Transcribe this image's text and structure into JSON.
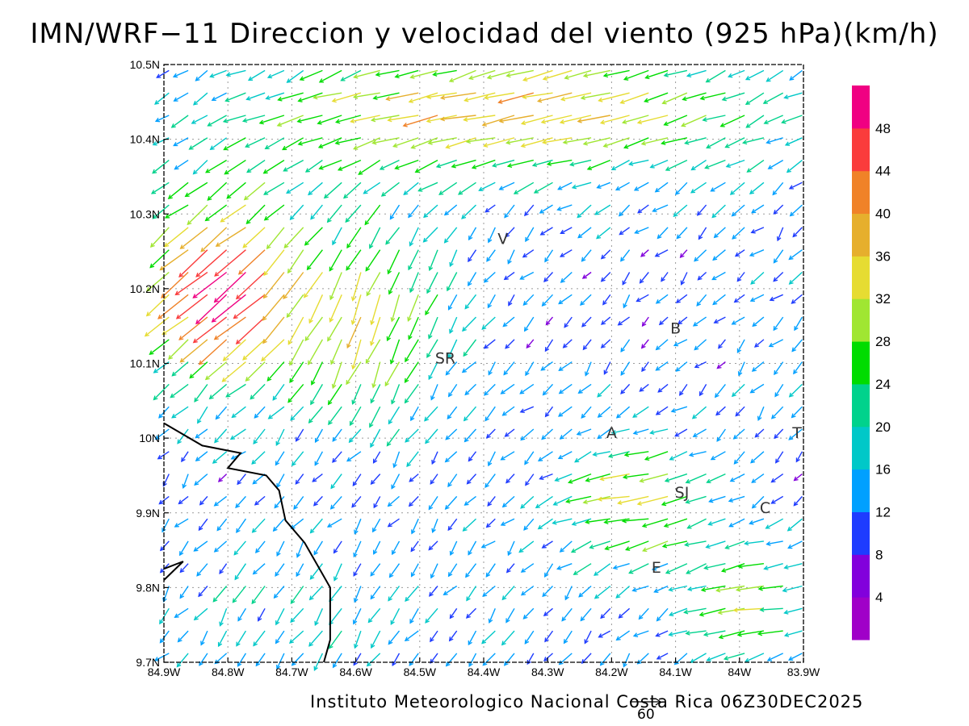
{
  "title": "IMN/WRF−11 Direccion y velocidad del viento (925 hPa)(km/h)",
  "credit": "Instituto Meteorologico Nacional Costa Rica 06Z30DEC2025",
  "reference_vector": {
    "label": "60",
    "value_kmh": 60
  },
  "axes": {
    "lon_range": [
      -84.9,
      -83.9
    ],
    "lat_range": [
      9.7,
      10.5
    ],
    "x_ticks": [
      "84.9W",
      "84.8W",
      "84.7W",
      "84.6W",
      "84.5W",
      "84.4W",
      "84.3W",
      "84.2W",
      "84.1W",
      "84W",
      "83.9W"
    ],
    "y_ticks": [
      "9.7N",
      "9.8N",
      "9.9N",
      "10N",
      "10.1N",
      "10.2N",
      "10.3N",
      "10.4N",
      "10.5N"
    ],
    "grid": "dotted"
  },
  "colorbar": {
    "colors": [
      "#a000c8",
      "#8200dc",
      "#1e3cff",
      "#00a0ff",
      "#00c8c8",
      "#00d28c",
      "#00dc00",
      "#a0e632",
      "#e6dc32",
      "#e6af2d",
      "#f08228",
      "#fa3c3c",
      "#f00082"
    ],
    "labels": [
      "4",
      "8",
      "12",
      "16",
      "20",
      "24",
      "28",
      "32",
      "36",
      "40",
      "44",
      "48"
    ]
  },
  "places": [
    {
      "label": "V",
      "lon": -84.37,
      "lat": 10.26
    },
    {
      "label": "B",
      "lon": -84.1,
      "lat": 10.14
    },
    {
      "label": "SR",
      "lon": -84.46,
      "lat": 10.1
    },
    {
      "label": "A",
      "lon": -84.2,
      "lat": 10.0
    },
    {
      "label": "SJ",
      "lon": -84.09,
      "lat": 9.92
    },
    {
      "label": "C",
      "lon": -83.96,
      "lat": 9.9
    },
    {
      "label": "E",
      "lon": -84.13,
      "lat": 9.82
    },
    {
      "label": "T",
      "lon": -83.91,
      "lat": 10.0
    }
  ],
  "coastline": [
    [
      -84.9,
      10.02
    ],
    [
      -84.84,
      9.99
    ],
    [
      -84.78,
      9.98
    ],
    [
      -84.8,
      9.96
    ],
    [
      -84.74,
      9.95
    ],
    [
      -84.72,
      9.93
    ],
    [
      -84.71,
      9.89
    ],
    [
      -84.68,
      9.86
    ],
    [
      -84.66,
      9.83
    ],
    [
      -84.64,
      9.8
    ],
    [
      -84.64,
      9.73
    ],
    [
      -84.65,
      9.7
    ]
  ],
  "coastline2": [
    [
      -84.9,
      9.825
    ],
    [
      -84.87,
      9.835
    ],
    [
      -84.9,
      9.81
    ]
  ],
  "wind_field": {
    "spacing_deg": 0.03,
    "max_kmh": 50,
    "regions": [
      {
        "name": "northern-easterly-band",
        "lon": [
          -84.8,
          -83.9
        ],
        "lat": [
          10.38,
          10.5
        ],
        "u": -30,
        "v": 0
      },
      {
        "name": "northwest-downslope",
        "lon": [
          -84.9,
          -84.7
        ],
        "lat": [
          10.1,
          10.32
        ],
        "u": -30,
        "v": -22
      },
      {
        "name": "north-slope-northerlies",
        "lon": [
          -84.7,
          -84.45
        ],
        "lat": [
          10.05,
          10.3
        ],
        "u": -4,
        "v": -22
      },
      {
        "name": "central-valley-easterlies",
        "lon": [
          -84.25,
          -84.05
        ],
        "lat": [
          9.86,
          9.98
        ],
        "u": -24,
        "v": 2
      },
      {
        "name": "southwest-weak-flow",
        "lon": [
          -84.9,
          -84.4
        ],
        "lat": [
          9.7,
          9.85
        ],
        "u": -2,
        "v": -7
      },
      {
        "name": "southeast-flow",
        "lon": [
          -84.05,
          -83.9
        ],
        "lat": [
          9.72,
          9.85
        ],
        "u": -22,
        "v": 4
      }
    ]
  }
}
